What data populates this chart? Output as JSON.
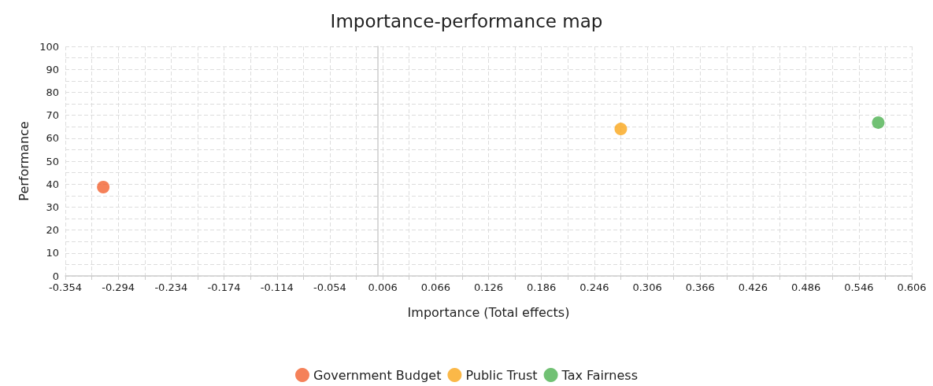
{
  "chart_data": {
    "type": "scatter",
    "title": "Importance-performance map",
    "xlabel": "Importance (Total effects)",
    "ylabel": "Performance",
    "series": [
      {
        "name": "Government Budget",
        "color": "#f26130",
        "x": [
          -0.311
        ],
        "values": [
          38.7
        ]
      },
      {
        "name": "Public Trust",
        "color": "#faa61a",
        "x": [
          0.276
        ],
        "values": [
          64.0
        ]
      },
      {
        "name": "Tax Fairness",
        "color": "#4db251",
        "x": [
          0.568
        ],
        "values": [
          66.8
        ]
      }
    ],
    "xlim": [
      -0.354,
      0.606
    ],
    "xticks": [
      -0.354,
      {
        "value": -0.324,
        "label": null
      },
      -0.294,
      {
        "value": -0.264,
        "label": null
      },
      -0.234,
      {
        "value": -0.204,
        "label": null
      },
      -0.174,
      {
        "value": -0.144,
        "label": null
      },
      -0.114,
      {
        "value": -0.084,
        "label": null
      },
      -0.054,
      {
        "value": -0.024,
        "label": null
      },
      0.006,
      {
        "value": 0.036,
        "label": null
      },
      0.066,
      {
        "value": 0.096,
        "label": null
      },
      0.126,
      {
        "value": 0.156,
        "label": null
      },
      0.186,
      {
        "value": 0.216,
        "label": null
      },
      0.246,
      {
        "value": 0.276,
        "label": null
      },
      0.306,
      {
        "value": 0.336,
        "label": null
      },
      0.366,
      {
        "value": 0.396,
        "label": null
      },
      0.426,
      {
        "value": 0.456,
        "label": null
      },
      0.486,
      {
        "value": 0.516,
        "label": null
      },
      0.546,
      {
        "value": 0.576,
        "label": null
      },
      0.606
    ],
    "ylim": [
      0,
      100
    ],
    "yticks": [
      0,
      {
        "value": 5,
        "label": null
      },
      10,
      {
        "value": 15,
        "label": null
      },
      20,
      {
        "value": 25,
        "label": null
      },
      30,
      {
        "value": 35,
        "label": null
      },
      40,
      {
        "value": 45,
        "label": null
      },
      50,
      {
        "value": 55,
        "label": null
      },
      60,
      {
        "value": 65,
        "label": null
      },
      70,
      {
        "value": 75,
        "label": null
      },
      80,
      {
        "value": 85,
        "label": null
      },
      90,
      {
        "value": 95,
        "label": null
      },
      100
    ],
    "grid": true,
    "legend": "bottom",
    "marker": "circle"
  }
}
